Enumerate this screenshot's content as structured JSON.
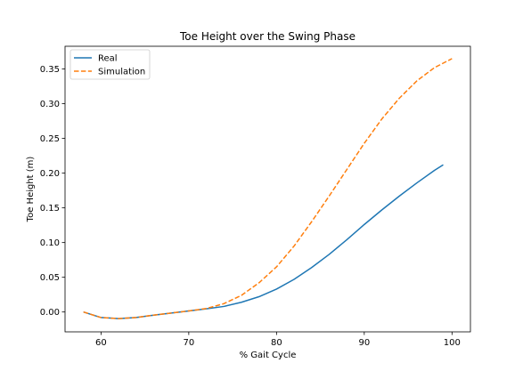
{
  "chart_data": {
    "type": "line",
    "title": "Toe Height over the Swing Phase",
    "xlabel": "% Gait Cycle",
    "ylabel": "Toe Height (m)",
    "xlim": [
      55.9,
      102.1
    ],
    "ylim": [
      -0.0286,
      0.3828
    ],
    "xticks": [
      60,
      70,
      80,
      90,
      100
    ],
    "yticks": [
      0.0,
      0.05,
      0.1,
      0.15,
      0.2,
      0.25,
      0.3,
      0.35
    ],
    "grid": false,
    "legend_position": "top-left",
    "series": [
      {
        "name": "Real",
        "color": "#1f77b4",
        "dash": "solid",
        "x": [
          58,
          60,
          62,
          64,
          66,
          68,
          70,
          72,
          74,
          76,
          78,
          80,
          82,
          84,
          86,
          88,
          90,
          92,
          94,
          96,
          98,
          99
        ],
        "y": [
          0.0,
          -0.008,
          -0.0095,
          -0.008,
          -0.0045,
          -0.0015,
          0.0015,
          0.0045,
          0.008,
          0.014,
          0.022,
          0.033,
          0.047,
          0.064,
          0.083,
          0.104,
          0.126,
          0.147,
          0.167,
          0.186,
          0.204,
          0.212
        ]
      },
      {
        "name": "Simulation",
        "color": "#ff7f0e",
        "dash": "dashed",
        "x": [
          58,
          60,
          62,
          64,
          66,
          68,
          70,
          72,
          74,
          76,
          78,
          80,
          82,
          84,
          86,
          88,
          90,
          92,
          94,
          96,
          98,
          100
        ],
        "y": [
          0.0,
          -0.008,
          -0.0095,
          -0.008,
          -0.0045,
          -0.0015,
          0.0015,
          0.005,
          0.012,
          0.024,
          0.042,
          0.065,
          0.095,
          0.13,
          0.167,
          0.205,
          0.243,
          0.278,
          0.308,
          0.333,
          0.352,
          0.365
        ]
      }
    ]
  }
}
